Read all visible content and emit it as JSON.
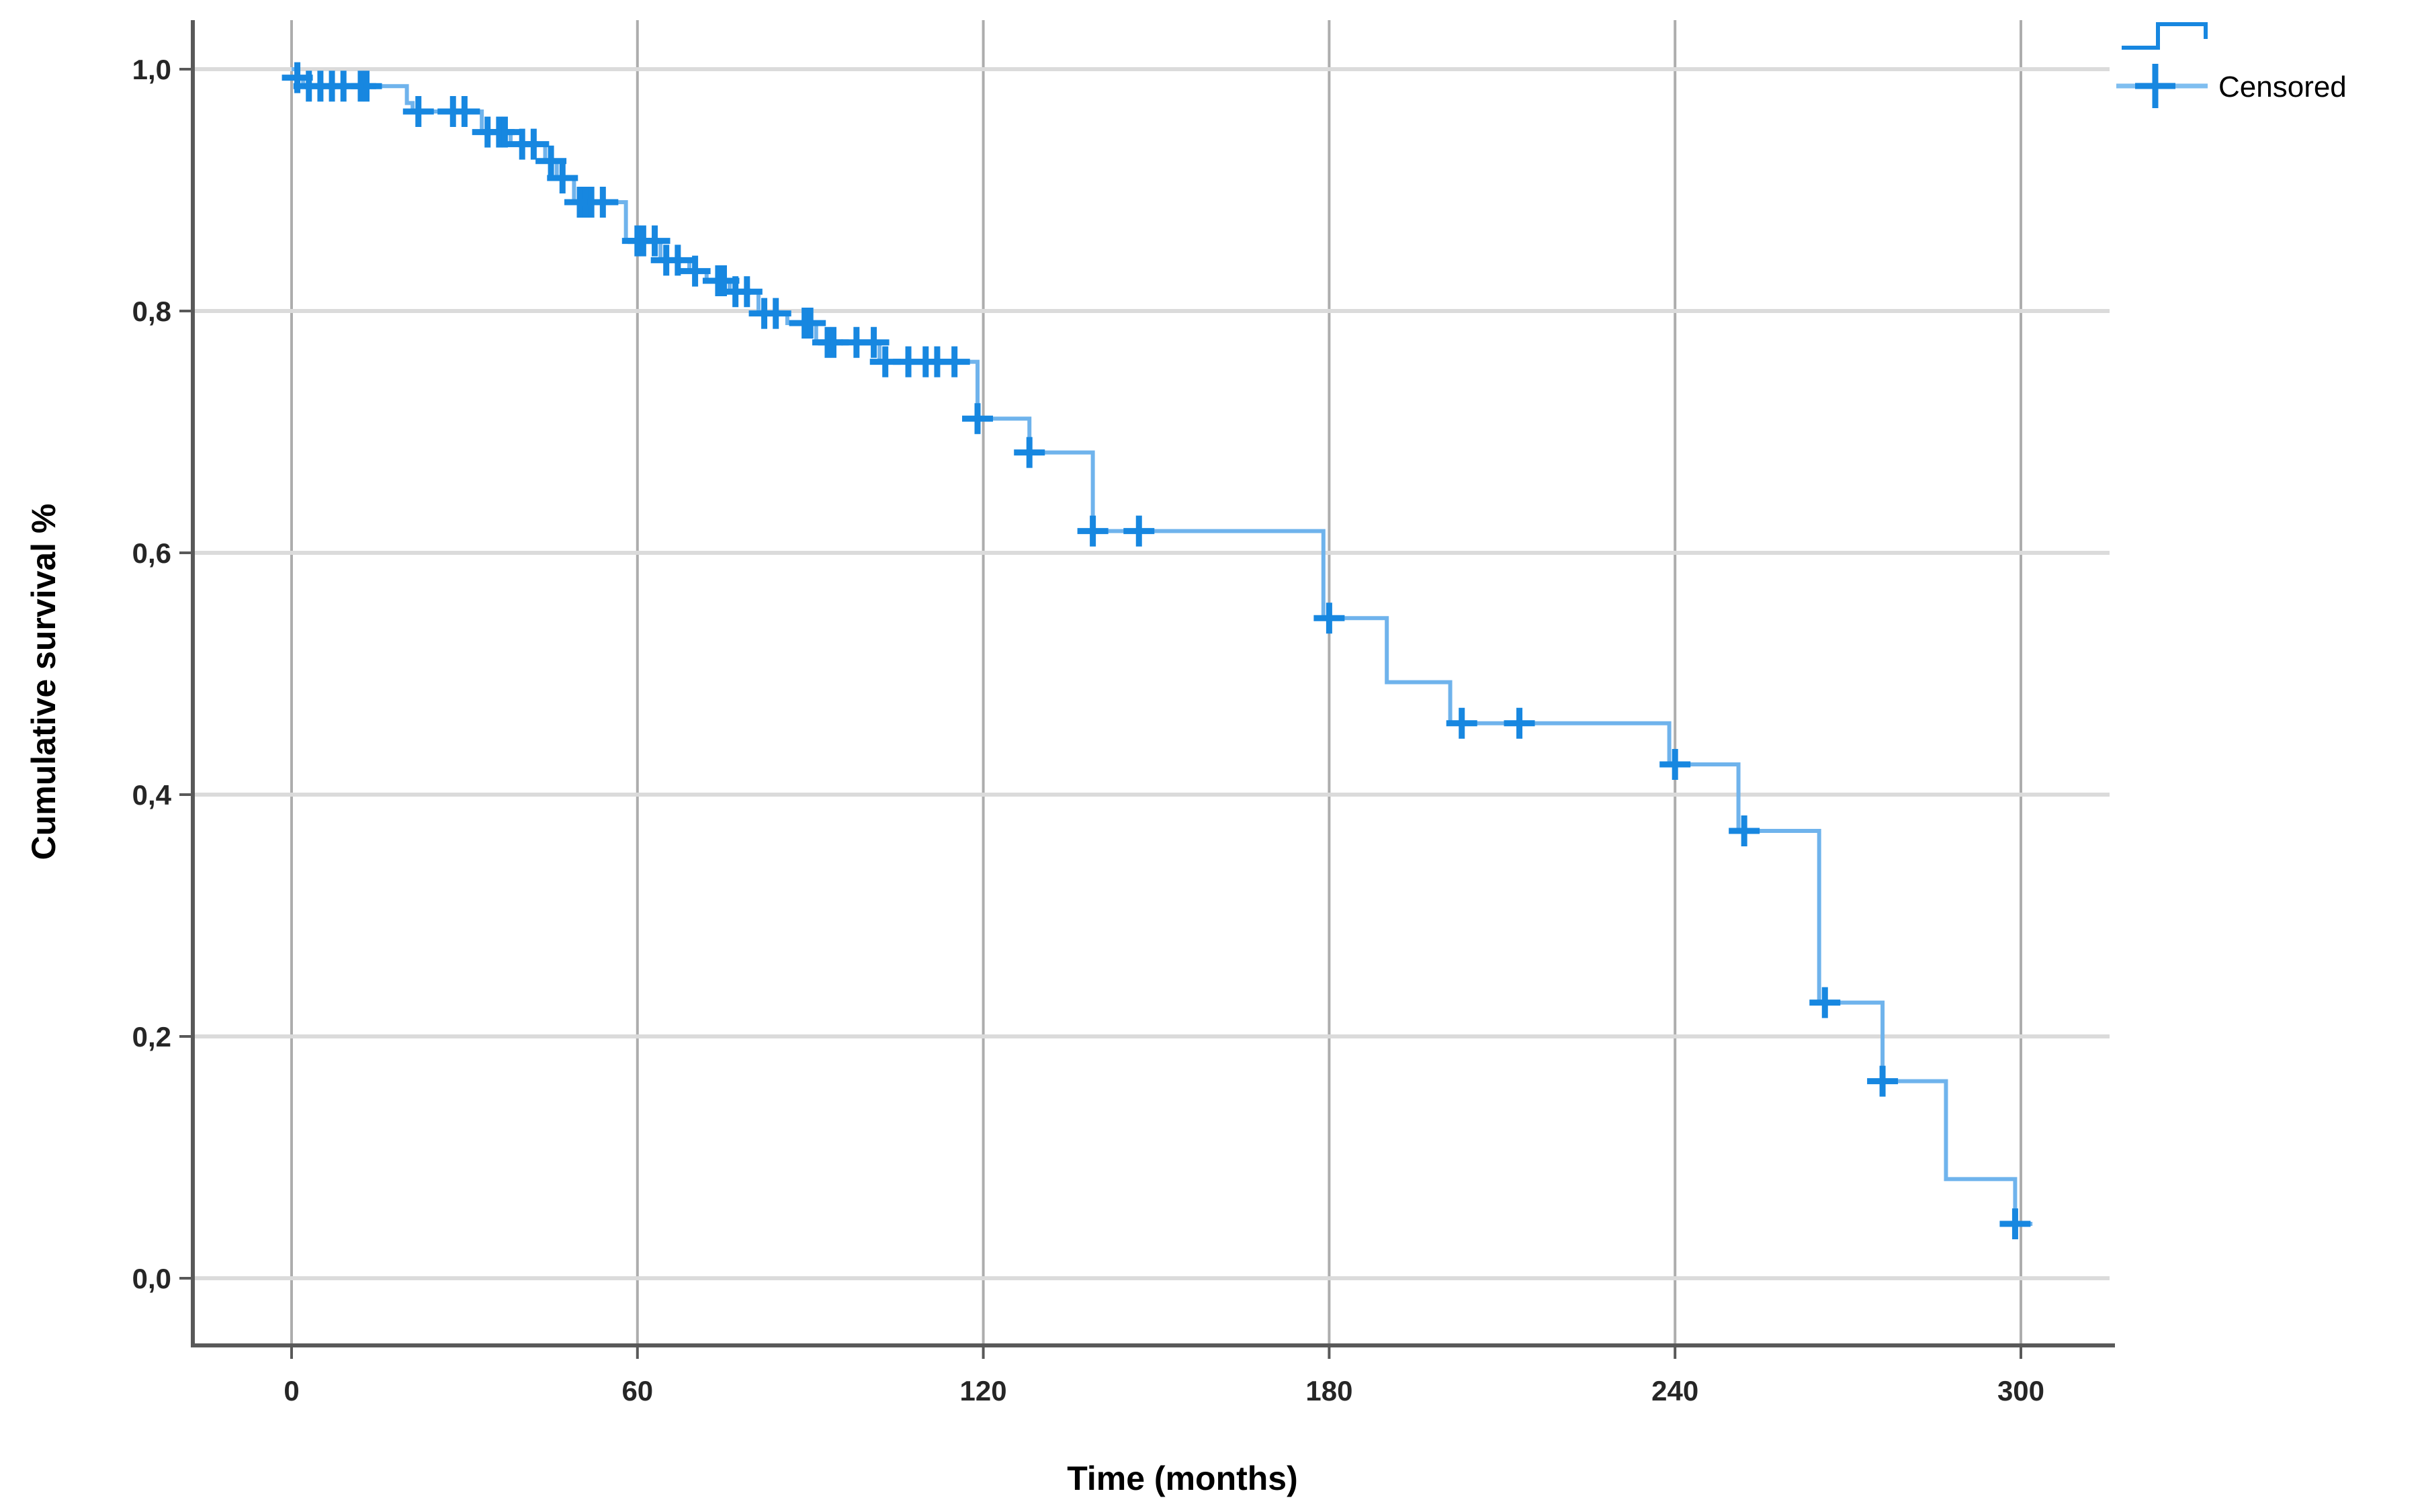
{
  "legend": {
    "entries": [
      {
        "symbol": "step-line-icon",
        "label": ""
      },
      {
        "symbol": "plus-marker-icon",
        "label": "Censored"
      }
    ]
  },
  "axes": {
    "x": {
      "title": "Time (months)",
      "tick_values": [
        0,
        60,
        120,
        180,
        240,
        300
      ],
      "tick_labels": [
        "0",
        "60",
        "120",
        "180",
        "240",
        "300"
      ]
    },
    "y": {
      "title": "Cumulative survival %",
      "tick_values": [
        0.0,
        0.2,
        0.4,
        0.6,
        0.8,
        1.0
      ],
      "tick_labels": [
        "0,0",
        "0,2",
        "0,4",
        "0,6",
        "0,8",
        "1,0"
      ]
    }
  },
  "colors": {
    "curve_line": "#6FB3EC",
    "censor_marker": "#1787E0",
    "grid_horizontal": "#DBDBDB",
    "grid_vertical": "#ADADAD",
    "axis_line": "#595959",
    "text": "#1a1a1a"
  },
  "chart_data": {
    "type": "line",
    "subtype": "kaplan-meier-step",
    "title": "",
    "xlabel": "Time (months)",
    "ylabel": "Cumulative survival %",
    "xlim": [
      -17,
      333
    ],
    "ylim": [
      -0.056,
      1.042
    ],
    "x_ticks": [
      0,
      60,
      120,
      180,
      240,
      300
    ],
    "y_ticks": [
      0.0,
      0.2,
      0.4,
      0.6,
      0.8,
      1.0
    ],
    "grid": true,
    "legend_position": "top-right",
    "end_time": 302,
    "series": [
      {
        "name": "Cumulative survival",
        "steps": [
          [
            0,
            1.0
          ],
          [
            1,
            0.993
          ],
          [
            2,
            0.986
          ],
          [
            20,
            0.972
          ],
          [
            21,
            0.965
          ],
          [
            33,
            0.948
          ],
          [
            38,
            0.938
          ],
          [
            44,
            0.924
          ],
          [
            46,
            0.91
          ],
          [
            49,
            0.89
          ],
          [
            58,
            0.858
          ],
          [
            64,
            0.842
          ],
          [
            69,
            0.833
          ],
          [
            72,
            0.825
          ],
          [
            76,
            0.816
          ],
          [
            81,
            0.798
          ],
          [
            86,
            0.79
          ],
          [
            91,
            0.774
          ],
          [
            102,
            0.758
          ],
          [
            119,
            0.711
          ],
          [
            128,
            0.683
          ],
          [
            139,
            0.618
          ],
          [
            179,
            0.546
          ],
          [
            190,
            0.493
          ],
          [
            201,
            0.459
          ],
          [
            239,
            0.425
          ],
          [
            251,
            0.37
          ],
          [
            265,
            0.228
          ],
          [
            276,
            0.163
          ],
          [
            287,
            0.082
          ],
          [
            299,
            0.045
          ]
        ]
      }
    ],
    "censored": [
      [
        1,
        0.993
      ],
      [
        3,
        0.986
      ],
      [
        5,
        0.986
      ],
      [
        7,
        0.986
      ],
      [
        9,
        0.986
      ],
      [
        12,
        0.986
      ],
      [
        13,
        0.986
      ],
      [
        22,
        0.965
      ],
      [
        28,
        0.965
      ],
      [
        30,
        0.965
      ],
      [
        34,
        0.948
      ],
      [
        36,
        0.948
      ],
      [
        37,
        0.948
      ],
      [
        40,
        0.938
      ],
      [
        42,
        0.938
      ],
      [
        45,
        0.924
      ],
      [
        47,
        0.91
      ],
      [
        50,
        0.89
      ],
      [
        51,
        0.89
      ],
      [
        52,
        0.89
      ],
      [
        54,
        0.89
      ],
      [
        60,
        0.858
      ],
      [
        61,
        0.858
      ],
      [
        63,
        0.858
      ],
      [
        65,
        0.842
      ],
      [
        67,
        0.842
      ],
      [
        70,
        0.833
      ],
      [
        74,
        0.825
      ],
      [
        75,
        0.825
      ],
      [
        77,
        0.816
      ],
      [
        79,
        0.816
      ],
      [
        82,
        0.798
      ],
      [
        84,
        0.798
      ],
      [
        89,
        0.79
      ],
      [
        90,
        0.79
      ],
      [
        93,
        0.774
      ],
      [
        94,
        0.774
      ],
      [
        98,
        0.774
      ],
      [
        101,
        0.774
      ],
      [
        103,
        0.758
      ],
      [
        107,
        0.758
      ],
      [
        110,
        0.758
      ],
      [
        112,
        0.758
      ],
      [
        115,
        0.758
      ],
      [
        119,
        0.711
      ],
      [
        128,
        0.683
      ],
      [
        139,
        0.618
      ],
      [
        147,
        0.618
      ],
      [
        180,
        0.546
      ],
      [
        203,
        0.459
      ],
      [
        213,
        0.459
      ],
      [
        240,
        0.425
      ],
      [
        252,
        0.37
      ],
      [
        266,
        0.228
      ],
      [
        276,
        0.163
      ],
      [
        299,
        0.045
      ]
    ]
  }
}
